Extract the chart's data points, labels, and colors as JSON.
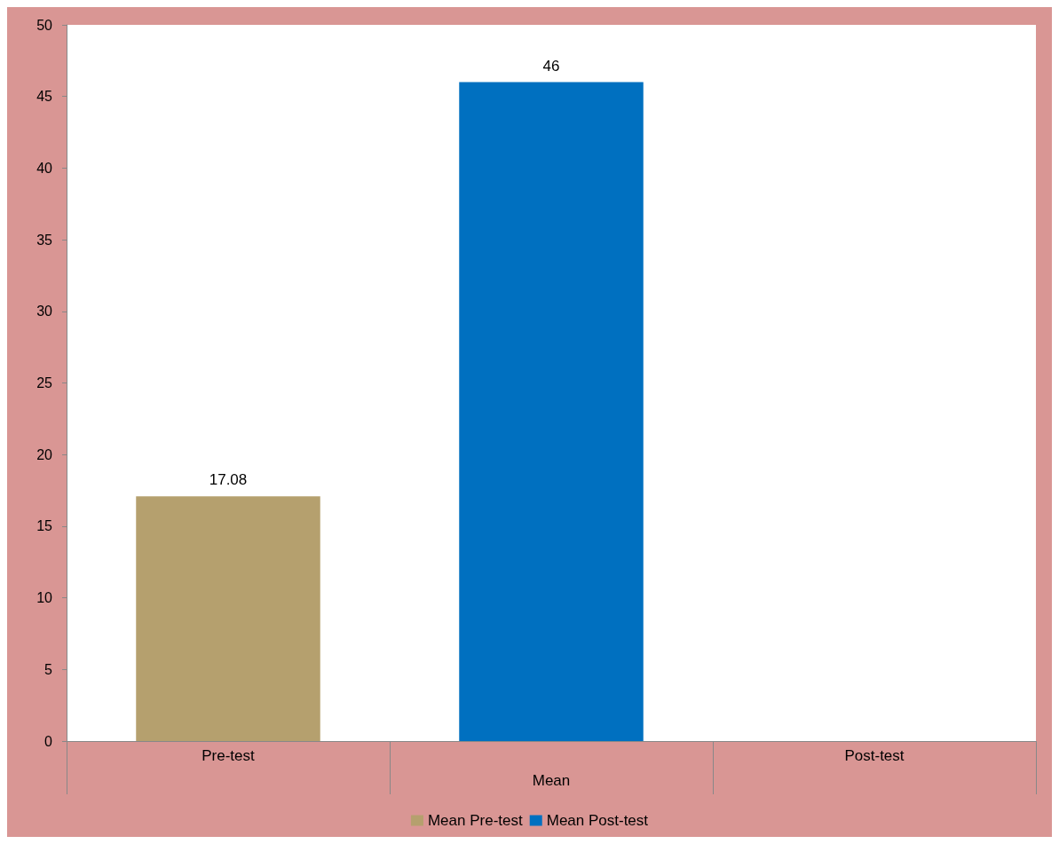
{
  "chart_data": {
    "type": "bar",
    "categories": [
      "Pre-test",
      null,
      "Post-test"
    ],
    "xlabel": "Mean",
    "stacked": true,
    "series": [
      {
        "name": "Mean Pre-test",
        "color": "#b5a06e",
        "values": [
          17.08,
          null,
          null
        ]
      },
      {
        "name": "Mean Post-test",
        "color": "#0070c0",
        "values": [
          null,
          46,
          null
        ]
      }
    ],
    "ylim": [
      0,
      50
    ],
    "yticks": [
      0,
      5,
      10,
      15,
      20,
      25,
      30,
      35,
      40,
      45,
      50
    ],
    "grid": false,
    "legend": "bottom",
    "data_labels": true
  }
}
